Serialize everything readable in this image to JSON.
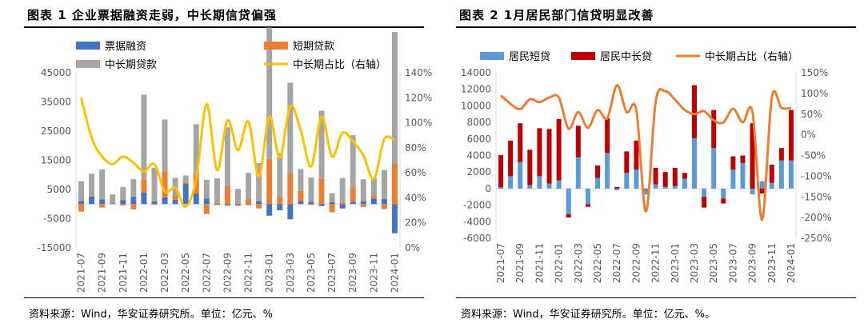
{
  "left": {
    "title": "图表 1 企业票据融资走弱，中长期信贷偏强",
    "source": "资料来源：Wind，华安证券研究所。单位：亿元、%"
  },
  "right": {
    "title": "图表 2 1月居民部门信贷明显改善",
    "source": "资料来源：Wind，华安证券研究所。单位：亿元、%。"
  },
  "chart_data": [
    {
      "type": "bar",
      "stacked": true,
      "grid": false,
      "legend_position": "top",
      "categories": [
        "2021-07",
        "2021-08",
        "2021-09",
        "2021-10",
        "2021-11",
        "2021-12",
        "2022-01",
        "2022-02",
        "2022-03",
        "2022-04",
        "2022-05",
        "2022-06",
        "2022-07",
        "2022-08",
        "2022-09",
        "2022-10",
        "2022-11",
        "2022-12",
        "2023-01",
        "2023-02",
        "2023-03",
        "2023-04",
        "2023-05",
        "2023-06",
        "2023-07",
        "2023-08",
        "2023-09",
        "2023-10",
        "2023-11",
        "2023-12",
        "2024-01"
      ],
      "tick_labels": [
        "2021-07",
        "2021-09",
        "2021-11",
        "2022-01",
        "2022-03",
        "2022-05",
        "2022-07",
        "2022-09",
        "2022-11",
        "2023-01",
        "2023-03",
        "2023-05",
        "2023-07",
        "2023-09",
        "2023-11",
        "2024-01"
      ],
      "ylim": [
        -15000,
        45000
      ],
      "y_ticks": [
        -15000,
        -5000,
        5000,
        15000,
        25000,
        35000,
        45000
      ],
      "y_tick_labels": [
        "-15000",
        "-5000",
        "5000",
        "15000",
        "25000",
        "35000",
        "45000"
      ],
      "y2lim": [
        0,
        140
      ],
      "y2_ticks": [
        0,
        20,
        40,
        60,
        80,
        100,
        120,
        140
      ],
      "y2_tick_labels": [
        "0%",
        "20%",
        "40%",
        "60%",
        "80%",
        "100%",
        "120%",
        "140%"
      ],
      "series": [
        {
          "name": "票据融资",
          "kind": "bar",
          "color": "#4472C4",
          "values": [
            1100,
            2600,
            1600,
            300,
            1400,
            2500,
            4000,
            900,
            2300,
            1500,
            7000,
            3500,
            1900,
            -300,
            -500,
            -400,
            -300,
            1000,
            -4000,
            -2100,
            -5200,
            1000,
            800,
            -700,
            700,
            -1500,
            800,
            1000,
            1900,
            1700,
            -10000
          ]
        },
        {
          "name": "短期贷款",
          "kind": "bar",
          "color": "#ED7D31",
          "values": [
            -2600,
            300,
            -1200,
            0,
            -500,
            -1800,
            4500,
            -200,
            8900,
            1500,
            500,
            6900,
            -3400,
            400,
            6200,
            -200,
            1700,
            -1500,
            15500,
            2500,
            10600,
            3500,
            -300,
            8600,
            -2800,
            700,
            4600,
            -1000,
            1100,
            -1700,
            14000
          ]
        },
        {
          "name": "中长期贷款",
          "kind": "bar",
          "color": "#A5A5A5",
          "values": [
            6700,
            7500,
            10300,
            3000,
            4500,
            6000,
            29000,
            11500,
            17800,
            6000,
            2300,
            17000,
            6400,
            8400,
            20100,
            5200,
            9000,
            13000,
            45000,
            15100,
            31000,
            7500,
            8300,
            23400,
            3000,
            8200,
            18200,
            7500,
            6000,
            10000,
            45000
          ]
        },
        {
          "name": "中长期占比（右轴）",
          "kind": "line",
          "axis": "right",
          "color": "#FFC000",
          "values": [
            120,
            88,
            73,
            67,
            73,
            68,
            61,
            67,
            45,
            48,
            33,
            55,
            115,
            62,
            102,
            78,
            101,
            57,
            105,
            72,
            113,
            94,
            65,
            105,
            73,
            92,
            85,
            74,
            55,
            87,
            86
          ]
        }
      ]
    },
    {
      "type": "bar",
      "stacked": true,
      "grid": false,
      "legend_position": "top",
      "categories": [
        "2021-07",
        "2021-08",
        "2021-09",
        "2021-10",
        "2021-11",
        "2021-12",
        "2022-01",
        "2022-02",
        "2022-03",
        "2022-04",
        "2022-05",
        "2022-06",
        "2022-07",
        "2022-08",
        "2022-09",
        "2022-10",
        "2022-11",
        "2022-12",
        "2023-01",
        "2023-02",
        "2023-03",
        "2023-04",
        "2023-05",
        "2023-06",
        "2023-07",
        "2023-08",
        "2023-09",
        "2023-10",
        "2023-11",
        "2023-12",
        "2024-01"
      ],
      "tick_labels": [
        "2021-07",
        "2021-09",
        "2021-11",
        "2022-01",
        "2022-03",
        "2022-05",
        "2022-07",
        "2022-09",
        "2022-11",
        "2023-01",
        "2023-03",
        "2023-05",
        "2023-07",
        "2023-09",
        "2023-11",
        "2024-01"
      ],
      "ylim": [
        -6000,
        14000
      ],
      "y_ticks": [
        -6000,
        -4000,
        -2000,
        0,
        2000,
        4000,
        6000,
        8000,
        10000,
        12000,
        14000
      ],
      "y_tick_labels": [
        "-6000",
        "-4000",
        "-2000",
        "0",
        "2000",
        "4000",
        "6000",
        "8000",
        "10000",
        "12000",
        "14000"
      ],
      "y2lim": [
        -250,
        150
      ],
      "y2_ticks": [
        -250,
        -200,
        -150,
        -100,
        -50,
        0,
        50,
        100,
        150
      ],
      "y2_tick_labels": [
        "-250%",
        "-200%",
        "-150%",
        "-100%",
        "-50%",
        "0%",
        "50%",
        "100%",
        "150%"
      ],
      "series": [
        {
          "name": "居民短贷",
          "kind": "bar",
          "color": "#5B9BD5",
          "values": [
            150,
            1500,
            3200,
            400,
            1500,
            600,
            1000,
            -3100,
            3800,
            -1900,
            1300,
            4300,
            -200,
            1900,
            2300,
            -700,
            500,
            200,
            300,
            1200,
            6100,
            -1000,
            4900,
            -1200,
            2300,
            3100,
            -700,
            900,
            700,
            3400,
            3400
          ]
        },
        {
          "name": "居民中长贷",
          "kind": "bar",
          "color": "#C00000",
          "values": [
            3900,
            4300,
            4700,
            4300,
            5800,
            6600,
            7400,
            -400,
            3800,
            -300,
            1500,
            4200,
            200,
            2600,
            3500,
            0,
            2000,
            1800,
            2200,
            700,
            6400,
            -1300,
            4600,
            -600,
            1600,
            900,
            7900,
            -600,
            2200,
            1500,
            6100
          ]
        },
        {
          "name": "中长期占比（右轴）",
          "kind": "line",
          "axis": "right",
          "color": "#ED7D31",
          "values": [
            95,
            75,
            62,
            86,
            79,
            90,
            90,
            15,
            55,
            17,
            60,
            40,
            120,
            55,
            60,
            -185,
            80,
            105,
            85,
            60,
            50,
            57,
            35,
            30,
            63,
            30,
            55,
            -205,
            90,
            65,
            65
          ]
        }
      ]
    }
  ]
}
